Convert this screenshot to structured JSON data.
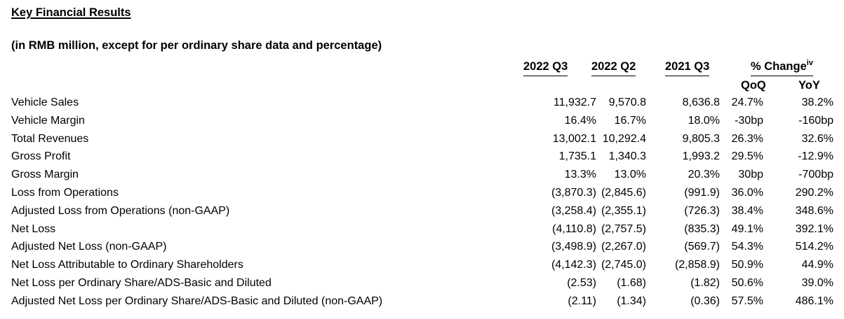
{
  "title": "Key Financial Results",
  "subtitle": "(in RMB million, except for per ordinary share data and percentage)",
  "columns": {
    "c1": "2022 Q3",
    "c2": "2022 Q2",
    "c3": "2021 Q3",
    "change": "% Change",
    "change_note": "iv",
    "qoq": "QoQ",
    "yoy": "YoY"
  },
  "rows": [
    {
      "label": "Vehicle Sales",
      "q3_2022": "11,932.7",
      "q2_2022": "9,570.8",
      "q3_2021": "8,636.8",
      "qoq": "24.7%",
      "yoy": "38.2%"
    },
    {
      "label": "Vehicle Margin",
      "q3_2022": "16.4%",
      "q2_2022": "16.7%",
      "q3_2021": "18.0%",
      "qoq": "-30bp",
      "yoy": "-160bp"
    },
    {
      "label": "Total Revenues",
      "q3_2022": "13,002.1",
      "q2_2022": "10,292.4",
      "q3_2021": "9,805.3",
      "qoq": "26.3%",
      "yoy": "32.6%"
    },
    {
      "label": "Gross Profit",
      "q3_2022": "1,735.1",
      "q2_2022": "1,340.3",
      "q3_2021": "1,993.2",
      "qoq": "29.5%",
      "yoy": "-12.9%"
    },
    {
      "label": "Gross Margin",
      "q3_2022": "13.3%",
      "q2_2022": "13.0%",
      "q3_2021": "20.3%",
      "qoq": "30bp",
      "yoy": "-700bp"
    },
    {
      "label": "Loss from Operations",
      "q3_2022": "(3,870.3)",
      "q2_2022": "(2,845.6)",
      "q3_2021": "(991.9)",
      "qoq": "36.0%",
      "yoy": "290.2%"
    },
    {
      "label": "Adjusted Loss from Operations (non-GAAP)",
      "q3_2022": "(3,258.4)",
      "q2_2022": "(2,355.1)",
      "q3_2021": "(726.3)",
      "qoq": "38.4%",
      "yoy": "348.6%"
    },
    {
      "label": "Net Loss",
      "q3_2022": "(4,110.8)",
      "q2_2022": "(2,757.5)",
      "q3_2021": "(835.3)",
      "qoq": "49.1%",
      "yoy": "392.1%"
    },
    {
      "label": "Adjusted Net Loss (non-GAAP)",
      "q3_2022": "(3,498.9)",
      "q2_2022": "(2,267.0)",
      "q3_2021": "(569.7)",
      "qoq": "54.3%",
      "yoy": "514.2%"
    },
    {
      "label": "Net Loss Attributable to Ordinary Shareholders",
      "q3_2022": "(4,142.3)",
      "q2_2022": "(2,745.0)",
      "q3_2021": "(2,858.9)",
      "qoq": "50.9%",
      "yoy": "44.9%"
    },
    {
      "label": "Net Loss per Ordinary Share/ADS-Basic and Diluted",
      "q3_2022": "(2.53)",
      "q2_2022": "(1.68)",
      "q3_2021": "(1.82)",
      "qoq": "50.6%",
      "yoy": "39.0%"
    },
    {
      "label": "Adjusted Net Loss per Ordinary Share/ADS-Basic and Diluted (non-GAAP)",
      "q3_2022": "(2.11)",
      "q2_2022": "(1.34)",
      "q3_2021": "(0.36)",
      "qoq": "57.5%",
      "yoy": "486.1%"
    }
  ]
}
